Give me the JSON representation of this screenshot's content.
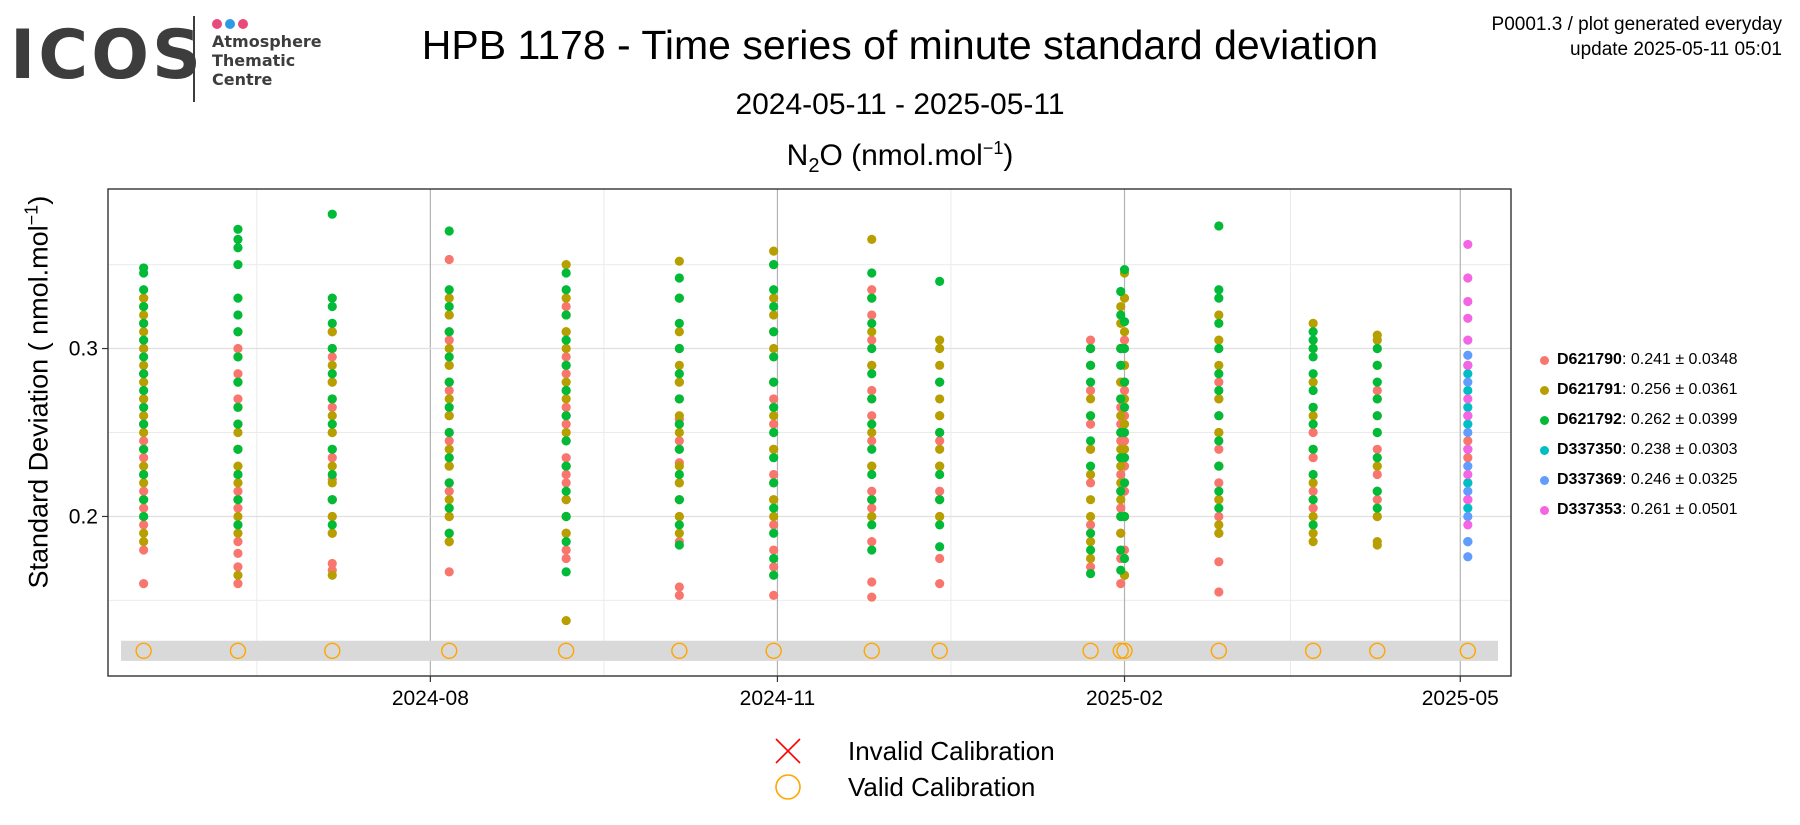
{
  "logo": {
    "word": "ICOS",
    "text_lines": [
      "Atmosphere",
      "Thematic",
      "Centre"
    ],
    "dot_colors": [
      "#e84a7c",
      "#2c9be4",
      "#e84a7c"
    ]
  },
  "header": {
    "title": "HPB 1178 - Time series of minute standard deviation",
    "date_range": "2024-05-11 - 2025-05-11",
    "species_label": {
      "pre": "N",
      "sub": "2",
      "mid": "O (nmol.mol",
      "sup": "−1",
      "post": ")"
    },
    "corner_line1": "P0001.3 / plot generated everyday",
    "corner_line2": "update  2025-05-11 05:01"
  },
  "chart_data": {
    "type": "scatter",
    "x_axis": {
      "type": "date",
      "range": [
        "2024-05-11",
        "2025-05-11"
      ],
      "ticks": [
        "2024-08",
        "2024-11",
        "2025-02",
        "2025-05"
      ]
    },
    "y_axis": {
      "label": {
        "pre": "Standard Deviation ( nmol.mol",
        "sup": "−1",
        "post": ")"
      },
      "range": [
        0.105,
        0.395
      ],
      "ticks": [
        0.2,
        0.3
      ],
      "tick_labels": [
        "0.2",
        "0.3"
      ],
      "minor_ticks": [
        0.15,
        0.25,
        0.35
      ]
    },
    "grid": true,
    "calibration_band": {
      "y_range": [
        0.114,
        0.126
      ],
      "color": "#d9d9d9"
    },
    "calibration_points": {
      "y": 0.12,
      "status": "valid",
      "dates": [
        "2024-05-17",
        "2024-06-11",
        "2024-07-06",
        "2024-08-06",
        "2024-09-06",
        "2024-10-06",
        "2024-10-31",
        "2024-11-26",
        "2024-12-14",
        "2025-01-23",
        "2025-01-31",
        "2025-02-01",
        "2025-02-26",
        "2025-03-23",
        "2025-04-09",
        "2025-05-03"
      ]
    },
    "series": [
      {
        "id": "D621790",
        "color": "#f8766d",
        "stats": ": 0.241 ± 0.0348",
        "points": [
          [
            "2024-05-17",
            [
              0.16,
              0.18,
              0.195,
              0.205,
              0.215,
              0.225,
              0.235,
              0.245,
              0.255,
              0.27,
              0.285,
              0.3,
              0.315,
              0.33
            ]
          ],
          [
            "2024-06-11",
            [
              0.16,
              0.17,
              0.178,
              0.185,
              0.195,
              0.205,
              0.215,
              0.225,
              0.24,
              0.255,
              0.27,
              0.285,
              0.3
            ]
          ],
          [
            "2024-07-06",
            [
              0.168,
              0.172,
              0.19,
              0.2,
              0.21,
              0.222,
              0.235,
              0.25,
              0.265,
              0.28,
              0.295,
              0.31
            ]
          ],
          [
            "2024-08-06",
            [
              0.167,
              0.185,
              0.2,
              0.215,
              0.23,
              0.245,
              0.26,
              0.275,
              0.29,
              0.305,
              0.32,
              0.353
            ]
          ],
          [
            "2024-09-06",
            [
              0.175,
              0.18,
              0.19,
              0.2,
              0.21,
              0.22,
              0.225,
              0.235,
              0.245,
              0.255,
              0.265,
              0.275,
              0.285,
              0.295,
              0.31,
              0.325
            ]
          ],
          [
            "2024-10-06",
            [
              0.153,
              0.158,
              0.185,
              0.2,
              0.21,
              0.22,
              0.232,
              0.245,
              0.258,
              0.27,
              0.28
            ]
          ],
          [
            "2024-10-31",
            [
              0.153,
              0.17,
              0.18,
              0.195,
              0.21,
              0.225,
              0.24,
              0.255,
              0.27
            ]
          ],
          [
            "2024-11-26",
            [
              0.152,
              0.161,
              0.185,
              0.2,
              0.205,
              0.215,
              0.23,
              0.245,
              0.26,
              0.275,
              0.29,
              0.305,
              0.32,
              0.335
            ]
          ],
          [
            "2024-12-14",
            [
              0.16,
              0.175,
              0.2,
              0.215,
              0.23,
              0.245,
              0.26
            ]
          ],
          [
            "2025-01-23",
            [
              0.17,
              0.195,
              0.22,
              0.24,
              0.255,
              0.275,
              0.29,
              0.3,
              0.305
            ]
          ],
          [
            "2025-01-31",
            [
              0.16,
              0.175,
              0.19,
              0.205,
              0.215,
              0.225,
              0.235,
              0.245,
              0.255,
              0.265,
              0.27,
              0.28,
              0.29,
              0.3
            ]
          ],
          [
            "2025-02-01",
            [
              0.165,
              0.18,
              0.2,
              0.215,
              0.23,
              0.245,
              0.26,
              0.275,
              0.29,
              0.305
            ]
          ],
          [
            "2025-02-26",
            [
              0.155,
              0.173,
              0.19,
              0.2,
              0.21,
              0.22,
              0.23,
              0.24,
              0.25,
              0.26,
              0.27,
              0.28
            ]
          ],
          [
            "2025-03-23",
            [
              0.205,
              0.215,
              0.235,
              0.25,
              0.265
            ]
          ],
          [
            "2025-04-09",
            [
              0.2,
              0.21,
              0.225,
              0.24,
              0.26,
              0.275,
              0.29,
              0.3
            ]
          ],
          [
            "2025-05-03",
            [
              0.21,
              0.22,
              0.235,
              0.245
            ]
          ]
        ]
      },
      {
        "id": "D621791",
        "color": "#b79f00",
        "stats": ": 0.256 ± 0.0361",
        "points": [
          [
            "2024-05-17",
            [
              0.185,
              0.19,
              0.2,
              0.21,
              0.22,
              0.23,
              0.24,
              0.25,
              0.26,
              0.27,
              0.28,
              0.29,
              0.3,
              0.31,
              0.32,
              0.325,
              0.33
            ]
          ],
          [
            "2024-06-11",
            [
              0.165,
              0.19,
              0.2,
              0.21,
              0.22,
              0.23,
              0.24,
              0.25,
              0.265,
              0.28,
              0.295,
              0.31
            ]
          ],
          [
            "2024-07-06",
            [
              0.165,
              0.19,
              0.2,
              0.21,
              0.22,
              0.23,
              0.24,
              0.25,
              0.26,
              0.27,
              0.28,
              0.29,
              0.3,
              0.31
            ]
          ],
          [
            "2024-08-06",
            [
              0.185,
              0.19,
              0.2,
              0.21,
              0.22,
              0.23,
              0.24,
              0.25,
              0.26,
              0.27,
              0.28,
              0.29,
              0.3,
              0.31,
              0.32,
              0.33
            ]
          ],
          [
            "2024-09-06",
            [
              0.138,
              0.19,
              0.2,
              0.21,
              0.23,
              0.25,
              0.26,
              0.27,
              0.28,
              0.29,
              0.3,
              0.31,
              0.32,
              0.33,
              0.35
            ]
          ],
          [
            "2024-10-06",
            [
              0.19,
              0.2,
              0.21,
              0.22,
              0.23,
              0.24,
              0.25,
              0.26,
              0.27,
              0.28,
              0.29,
              0.3,
              0.31,
              0.33,
              0.352
            ]
          ],
          [
            "2024-10-31",
            [
              0.2,
              0.21,
              0.22,
              0.24,
              0.26,
              0.28,
              0.3,
              0.31,
              0.32,
              0.33,
              0.35,
              0.358
            ]
          ],
          [
            "2024-11-26",
            [
              0.2,
              0.21,
              0.23,
              0.25,
              0.27,
              0.29,
              0.31,
              0.33,
              0.365
            ]
          ],
          [
            "2024-12-14",
            [
              0.2,
              0.21,
              0.23,
              0.24,
              0.25,
              0.26,
              0.27,
              0.28,
              0.29,
              0.3,
              0.305
            ]
          ],
          [
            "2025-01-23",
            [
              0.175,
              0.185,
              0.2,
              0.21,
              0.225,
              0.24,
              0.26,
              0.27,
              0.29,
              0.3
            ]
          ],
          [
            "2025-01-31",
            [
              0.19,
              0.2,
              0.21,
              0.22,
              0.23,
              0.24,
              0.25,
              0.26,
              0.27,
              0.28,
              0.3,
              0.315,
              0.325
            ]
          ],
          [
            "2025-02-01",
            [
              0.165,
              0.2,
              0.22,
              0.24,
              0.255,
              0.27,
              0.28,
              0.29,
              0.31,
              0.33,
              0.345
            ]
          ],
          [
            "2025-02-26",
            [
              0.19,
              0.195,
              0.21,
              0.23,
              0.25,
              0.27,
              0.29,
              0.305,
              0.32
            ]
          ],
          [
            "2025-03-23",
            [
              0.185,
              0.19,
              0.2,
              0.22,
              0.24,
              0.26,
              0.28,
              0.3,
              0.315
            ]
          ],
          [
            "2025-04-09",
            [
              0.183,
              0.185,
              0.2,
              0.215,
              0.23,
              0.25,
              0.27,
              0.29,
              0.305,
              0.308
            ]
          ]
        ]
      },
      {
        "id": "D621792",
        "color": "#00ba38",
        "stats": ": 0.262 ± 0.0399",
        "points": [
          [
            "2024-05-17",
            [
              0.2,
              0.21,
              0.225,
              0.24,
              0.255,
              0.265,
              0.275,
              0.285,
              0.295,
              0.305,
              0.315,
              0.325,
              0.335,
              0.345,
              0.348
            ]
          ],
          [
            "2024-06-11",
            [
              0.195,
              0.21,
              0.225,
              0.24,
              0.255,
              0.265,
              0.28,
              0.295,
              0.31,
              0.32,
              0.33,
              0.35,
              0.36,
              0.365,
              0.371
            ]
          ],
          [
            "2024-07-06",
            [
              0.195,
              0.21,
              0.225,
              0.24,
              0.255,
              0.27,
              0.285,
              0.3,
              0.315,
              0.325,
              0.33,
              0.38
            ]
          ],
          [
            "2024-08-06",
            [
              0.19,
              0.205,
              0.22,
              0.235,
              0.25,
              0.265,
              0.28,
              0.295,
              0.31,
              0.325,
              0.335,
              0.37
            ]
          ],
          [
            "2024-09-06",
            [
              0.167,
              0.185,
              0.2,
              0.215,
              0.23,
              0.245,
              0.26,
              0.275,
              0.29,
              0.305,
              0.32,
              0.335,
              0.345
            ]
          ],
          [
            "2024-10-06",
            [
              0.183,
              0.195,
              0.21,
              0.225,
              0.24,
              0.255,
              0.27,
              0.285,
              0.3,
              0.315,
              0.33,
              0.342
            ]
          ],
          [
            "2024-10-31",
            [
              0.165,
              0.175,
              0.19,
              0.205,
              0.22,
              0.235,
              0.25,
              0.265,
              0.28,
              0.295,
              0.31,
              0.325,
              0.335,
              0.35
            ]
          ],
          [
            "2024-11-26",
            [
              0.18,
              0.195,
              0.21,
              0.225,
              0.24,
              0.255,
              0.27,
              0.285,
              0.3,
              0.315,
              0.33,
              0.345
            ]
          ],
          [
            "2024-12-14",
            [
              0.182,
              0.195,
              0.21,
              0.225,
              0.25,
              0.28,
              0.34
            ]
          ],
          [
            "2025-01-23",
            [
              0.166,
              0.18,
              0.19,
              0.23,
              0.245,
              0.26,
              0.28,
              0.29,
              0.3
            ]
          ],
          [
            "2025-01-31",
            [
              0.168,
              0.18,
              0.2,
              0.215,
              0.235,
              0.25,
              0.27,
              0.29,
              0.3,
              0.32,
              0.334
            ]
          ],
          [
            "2025-02-01",
            [
              0.175,
              0.2,
              0.22,
              0.235,
              0.25,
              0.265,
              0.28,
              0.3,
              0.316,
              0.347
            ]
          ],
          [
            "2025-02-26",
            [
              0.205,
              0.215,
              0.23,
              0.245,
              0.26,
              0.275,
              0.285,
              0.3,
              0.315,
              0.33,
              0.335,
              0.373
            ]
          ],
          [
            "2025-03-23",
            [
              0.195,
              0.21,
              0.225,
              0.24,
              0.255,
              0.265,
              0.275,
              0.285,
              0.295,
              0.3,
              0.305,
              0.31
            ]
          ],
          [
            "2025-04-09",
            [
              0.205,
              0.215,
              0.235,
              0.25,
              0.26,
              0.27,
              0.28,
              0.29,
              0.3
            ]
          ]
        ]
      },
      {
        "id": "D337350",
        "color": "#00bfc4",
        "stats": ": 0.238 ± 0.0303",
        "points": [
          [
            "2025-05-03",
            [
              0.185,
              0.205,
              0.22,
              0.24,
              0.255,
              0.265,
              0.275,
              0.285,
              0.29
            ]
          ]
        ]
      },
      {
        "id": "D337369",
        "color": "#619cff",
        "stats": ": 0.246 ± 0.0325",
        "points": [
          [
            "2025-05-03",
            [
              0.176,
              0.185,
              0.2,
              0.215,
              0.23,
              0.25,
              0.26,
              0.28,
              0.296
            ]
          ]
        ]
      },
      {
        "id": "D337353",
        "color": "#f564e3",
        "stats": ": 0.261 ± 0.0501",
        "points": [
          [
            "2025-05-03",
            [
              0.195,
              0.21,
              0.225,
              0.24,
              0.26,
              0.27,
              0.29,
              0.305,
              0.318,
              0.328,
              0.342,
              0.362
            ]
          ]
        ]
      }
    ]
  },
  "calibration_legend": {
    "invalid_label": "Invalid Calibration",
    "valid_label": "Valid Calibration",
    "invalid_color": "#ff0000",
    "valid_color": "#ffa500"
  }
}
